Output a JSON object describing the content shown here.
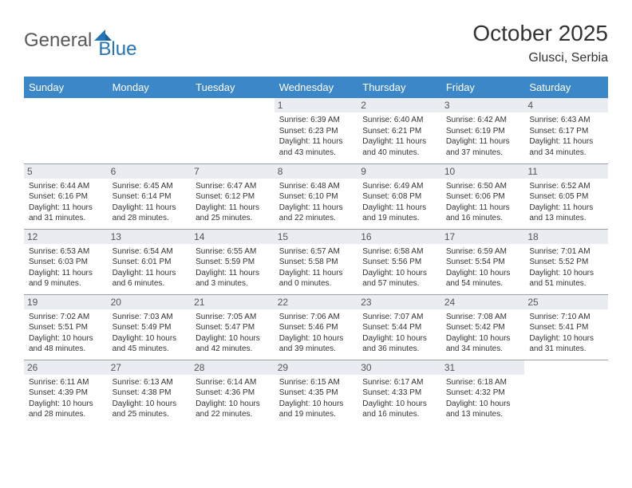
{
  "logo": {
    "part1": "General",
    "part2": "Blue",
    "mark_color": "#2374bb",
    "text1_color": "#58595b"
  },
  "title": "October 2025",
  "location": "Glusci, Serbia",
  "colors": {
    "header_bg": "#3b87c8",
    "header_fg": "#ffffff",
    "daynum_bg": "#e9edf1",
    "daynum_fg": "#555555",
    "cell_border": "#9aa0a6",
    "body_text": "#333333"
  },
  "weekdays": [
    "Sunday",
    "Monday",
    "Tuesday",
    "Wednesday",
    "Thursday",
    "Friday",
    "Saturday"
  ],
  "weeks": [
    [
      {
        "day": "",
        "sunrise": "",
        "sunset": "",
        "daylight": ""
      },
      {
        "day": "",
        "sunrise": "",
        "sunset": "",
        "daylight": ""
      },
      {
        "day": "",
        "sunrise": "",
        "sunset": "",
        "daylight": ""
      },
      {
        "day": "1",
        "sunrise": "Sunrise: 6:39 AM",
        "sunset": "Sunset: 6:23 PM",
        "daylight": "Daylight: 11 hours and 43 minutes."
      },
      {
        "day": "2",
        "sunrise": "Sunrise: 6:40 AM",
        "sunset": "Sunset: 6:21 PM",
        "daylight": "Daylight: 11 hours and 40 minutes."
      },
      {
        "day": "3",
        "sunrise": "Sunrise: 6:42 AM",
        "sunset": "Sunset: 6:19 PM",
        "daylight": "Daylight: 11 hours and 37 minutes."
      },
      {
        "day": "4",
        "sunrise": "Sunrise: 6:43 AM",
        "sunset": "Sunset: 6:17 PM",
        "daylight": "Daylight: 11 hours and 34 minutes."
      }
    ],
    [
      {
        "day": "5",
        "sunrise": "Sunrise: 6:44 AM",
        "sunset": "Sunset: 6:16 PM",
        "daylight": "Daylight: 11 hours and 31 minutes."
      },
      {
        "day": "6",
        "sunrise": "Sunrise: 6:45 AM",
        "sunset": "Sunset: 6:14 PM",
        "daylight": "Daylight: 11 hours and 28 minutes."
      },
      {
        "day": "7",
        "sunrise": "Sunrise: 6:47 AM",
        "sunset": "Sunset: 6:12 PM",
        "daylight": "Daylight: 11 hours and 25 minutes."
      },
      {
        "day": "8",
        "sunrise": "Sunrise: 6:48 AM",
        "sunset": "Sunset: 6:10 PM",
        "daylight": "Daylight: 11 hours and 22 minutes."
      },
      {
        "day": "9",
        "sunrise": "Sunrise: 6:49 AM",
        "sunset": "Sunset: 6:08 PM",
        "daylight": "Daylight: 11 hours and 19 minutes."
      },
      {
        "day": "10",
        "sunrise": "Sunrise: 6:50 AM",
        "sunset": "Sunset: 6:06 PM",
        "daylight": "Daylight: 11 hours and 16 minutes."
      },
      {
        "day": "11",
        "sunrise": "Sunrise: 6:52 AM",
        "sunset": "Sunset: 6:05 PM",
        "daylight": "Daylight: 11 hours and 13 minutes."
      }
    ],
    [
      {
        "day": "12",
        "sunrise": "Sunrise: 6:53 AM",
        "sunset": "Sunset: 6:03 PM",
        "daylight": "Daylight: 11 hours and 9 minutes."
      },
      {
        "day": "13",
        "sunrise": "Sunrise: 6:54 AM",
        "sunset": "Sunset: 6:01 PM",
        "daylight": "Daylight: 11 hours and 6 minutes."
      },
      {
        "day": "14",
        "sunrise": "Sunrise: 6:55 AM",
        "sunset": "Sunset: 5:59 PM",
        "daylight": "Daylight: 11 hours and 3 minutes."
      },
      {
        "day": "15",
        "sunrise": "Sunrise: 6:57 AM",
        "sunset": "Sunset: 5:58 PM",
        "daylight": "Daylight: 11 hours and 0 minutes."
      },
      {
        "day": "16",
        "sunrise": "Sunrise: 6:58 AM",
        "sunset": "Sunset: 5:56 PM",
        "daylight": "Daylight: 10 hours and 57 minutes."
      },
      {
        "day": "17",
        "sunrise": "Sunrise: 6:59 AM",
        "sunset": "Sunset: 5:54 PM",
        "daylight": "Daylight: 10 hours and 54 minutes."
      },
      {
        "day": "18",
        "sunrise": "Sunrise: 7:01 AM",
        "sunset": "Sunset: 5:52 PM",
        "daylight": "Daylight: 10 hours and 51 minutes."
      }
    ],
    [
      {
        "day": "19",
        "sunrise": "Sunrise: 7:02 AM",
        "sunset": "Sunset: 5:51 PM",
        "daylight": "Daylight: 10 hours and 48 minutes."
      },
      {
        "day": "20",
        "sunrise": "Sunrise: 7:03 AM",
        "sunset": "Sunset: 5:49 PM",
        "daylight": "Daylight: 10 hours and 45 minutes."
      },
      {
        "day": "21",
        "sunrise": "Sunrise: 7:05 AM",
        "sunset": "Sunset: 5:47 PM",
        "daylight": "Daylight: 10 hours and 42 minutes."
      },
      {
        "day": "22",
        "sunrise": "Sunrise: 7:06 AM",
        "sunset": "Sunset: 5:46 PM",
        "daylight": "Daylight: 10 hours and 39 minutes."
      },
      {
        "day": "23",
        "sunrise": "Sunrise: 7:07 AM",
        "sunset": "Sunset: 5:44 PM",
        "daylight": "Daylight: 10 hours and 36 minutes."
      },
      {
        "day": "24",
        "sunrise": "Sunrise: 7:08 AM",
        "sunset": "Sunset: 5:42 PM",
        "daylight": "Daylight: 10 hours and 34 minutes."
      },
      {
        "day": "25",
        "sunrise": "Sunrise: 7:10 AM",
        "sunset": "Sunset: 5:41 PM",
        "daylight": "Daylight: 10 hours and 31 minutes."
      }
    ],
    [
      {
        "day": "26",
        "sunrise": "Sunrise: 6:11 AM",
        "sunset": "Sunset: 4:39 PM",
        "daylight": "Daylight: 10 hours and 28 minutes."
      },
      {
        "day": "27",
        "sunrise": "Sunrise: 6:13 AM",
        "sunset": "Sunset: 4:38 PM",
        "daylight": "Daylight: 10 hours and 25 minutes."
      },
      {
        "day": "28",
        "sunrise": "Sunrise: 6:14 AM",
        "sunset": "Sunset: 4:36 PM",
        "daylight": "Daylight: 10 hours and 22 minutes."
      },
      {
        "day": "29",
        "sunrise": "Sunrise: 6:15 AM",
        "sunset": "Sunset: 4:35 PM",
        "daylight": "Daylight: 10 hours and 19 minutes."
      },
      {
        "day": "30",
        "sunrise": "Sunrise: 6:17 AM",
        "sunset": "Sunset: 4:33 PM",
        "daylight": "Daylight: 10 hours and 16 minutes."
      },
      {
        "day": "31",
        "sunrise": "Sunrise: 6:18 AM",
        "sunset": "Sunset: 4:32 PM",
        "daylight": "Daylight: 10 hours and 13 minutes."
      },
      {
        "day": "",
        "sunrise": "",
        "sunset": "",
        "daylight": ""
      }
    ]
  ]
}
